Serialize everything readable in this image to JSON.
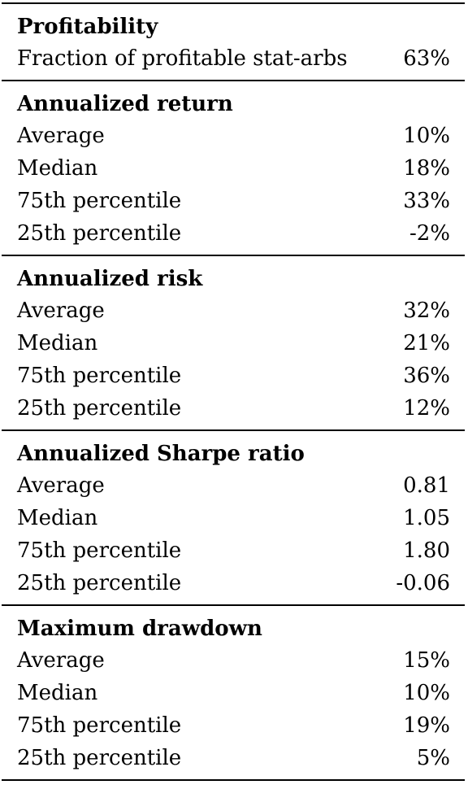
{
  "sections": [
    {
      "header": "Profitability",
      "rows": [
        {
          "label": "Fraction of profitable stat-arbs",
          "value": "63%"
        }
      ]
    },
    {
      "header": "Annualized return",
      "rows": [
        {
          "label": "Average",
          "value": "10%"
        },
        {
          "label": "Median",
          "value": "18%"
        },
        {
          "label": "75th percentile",
          "value": "33%"
        },
        {
          "label": "25th percentile",
          "value": "-2%"
        }
      ]
    },
    {
      "header": "Annualized risk",
      "rows": [
        {
          "label": "Average",
          "value": "32%"
        },
        {
          "label": "Median",
          "value": "21%"
        },
        {
          "label": "75th percentile",
          "value": "36%"
        },
        {
          "label": "25th percentile",
          "value": "12%"
        }
      ]
    },
    {
      "header": "Annualized Sharpe ratio",
      "rows": [
        {
          "label": "Average",
          "value": "0.81"
        },
        {
          "label": "Median",
          "value": "1.05"
        },
        {
          "label": "75th percentile",
          "value": "1.80"
        },
        {
          "label": "25th percentile",
          "value": "-0.06"
        }
      ]
    },
    {
      "header": "Maximum drawdown",
      "rows": [
        {
          "label": "Average",
          "value": "15%"
        },
        {
          "label": "Median",
          "value": "10%"
        },
        {
          "label": "75th percentile",
          "value": "19%"
        },
        {
          "label": "25th percentile",
          "value": "5%"
        }
      ]
    }
  ]
}
